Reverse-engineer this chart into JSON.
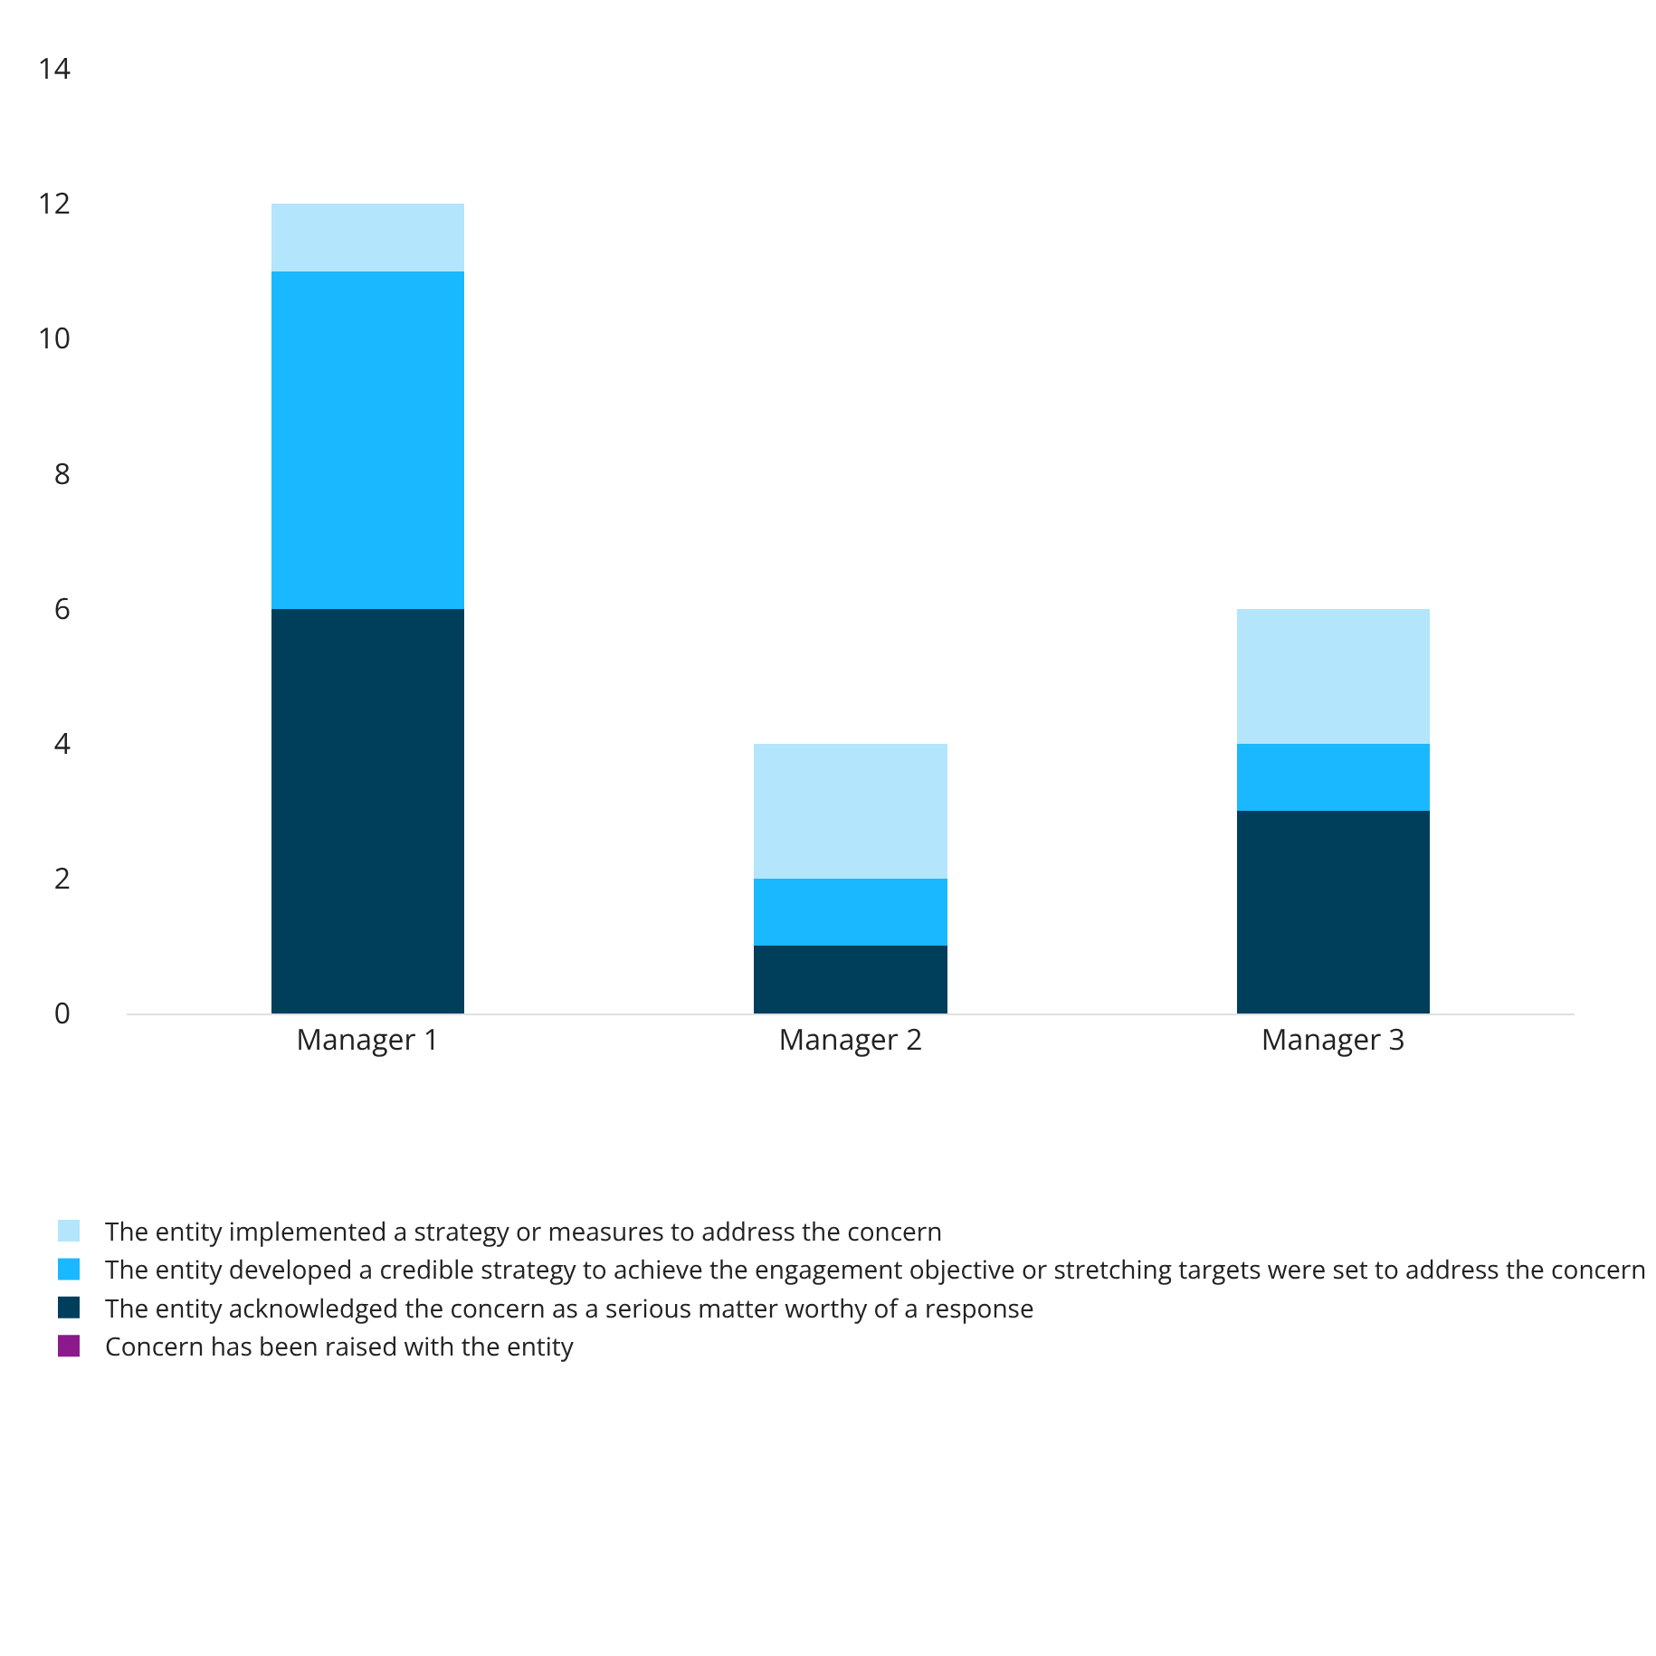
{
  "chart_data": {
    "type": "bar",
    "stacked": true,
    "categories": [
      "Manager 1",
      "Manager 2",
      "Manager 3"
    ],
    "series": [
      {
        "name": "Concern has been raised with the entity",
        "color": "#8c1a8c",
        "values": [
          0,
          0,
          0
        ]
      },
      {
        "name": "The entity acknowledged the concern as a serious matter worthy of a response",
        "color": "#003f5c",
        "values": [
          6,
          1,
          3
        ]
      },
      {
        "name": "The entity developed a credible strategy to achieve the engagement objective or stretching targets were set to address the concern",
        "color": "#1ab8ff",
        "values": [
          5,
          1,
          1
        ]
      },
      {
        "name": "The entity implemented a strategy or measures to address the concern",
        "color": "#b3e5fc",
        "values": [
          1,
          2,
          2
        ]
      }
    ],
    "ylim": [
      0,
      14
    ],
    "yticks": [
      0,
      2,
      4,
      6,
      8,
      10,
      12,
      14
    ],
    "grid": false,
    "legend": "bottom"
  }
}
